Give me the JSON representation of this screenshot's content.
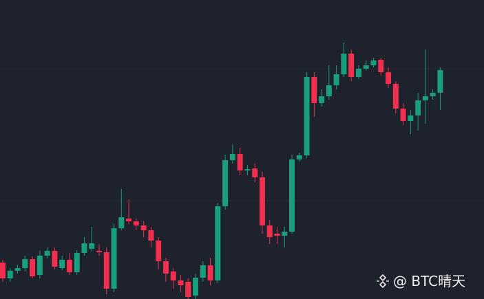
{
  "chart_data": {
    "type": "candlestick",
    "up_color": "#1a9e7d",
    "down_color": "#f0304e",
    "ylim": [
      0,
      435
    ],
    "open": [
      53,
      30,
      41,
      45,
      58,
      35,
      63,
      70,
      45,
      57,
      39,
      67,
      73,
      70,
      68,
      15,
      103,
      117,
      113,
      107,
      100,
      85,
      55,
      40,
      27,
      25,
      5,
      31,
      49,
      27,
      135,
      202,
      211,
      187,
      190,
      177,
      107,
      95,
      92,
      98,
      203,
      209,
      323,
      285,
      295,
      311,
      327,
      357,
      323,
      335,
      340,
      348,
      330,
      313,
      277,
      259,
      267,
      289,
      295,
      300
    ],
    "high": [
      57,
      45,
      50,
      63,
      62,
      70,
      75,
      75,
      63,
      67,
      71,
      90,
      105,
      80,
      75,
      110,
      160,
      145,
      117,
      113,
      105,
      90,
      60,
      45,
      35,
      30,
      37,
      55,
      60,
      140,
      210,
      225,
      220,
      195,
      197,
      185,
      115,
      105,
      105,
      210,
      213,
      330,
      330,
      305,
      340,
      340,
      373,
      363,
      340,
      347,
      351,
      351,
      337,
      317,
      285,
      275,
      300,
      363,
      305,
      337
    ],
    "low": [
      25,
      25,
      37,
      40,
      30,
      30,
      59,
      43,
      42,
      35,
      35,
      63,
      69,
      63,
      7,
      10,
      100,
      109,
      100,
      90,
      75,
      43,
      25,
      15,
      10,
      0,
      0,
      25,
      20,
      23,
      130,
      197,
      180,
      180,
      170,
      95,
      80,
      80,
      75,
      95,
      200,
      205,
      265,
      280,
      290,
      305,
      323,
      317,
      320,
      333,
      337,
      325,
      307,
      270,
      253,
      240,
      245,
      255,
      290,
      275
    ],
    "close": [
      30,
      41,
      45,
      58,
      33,
      63,
      70,
      47,
      57,
      39,
      67,
      81,
      81,
      68,
      15,
      103,
      119,
      113,
      107,
      100,
      85,
      55,
      37,
      27,
      20,
      3,
      31,
      49,
      27,
      135,
      202,
      211,
      187,
      189,
      177,
      107,
      90,
      92,
      98,
      203,
      209,
      323,
      285,
      295,
      311,
      327,
      357,
      323,
      335,
      340,
      347,
      330,
      313,
      277,
      259,
      267,
      289,
      295,
      300,
      333
    ]
  },
  "watermark": "@ BTC晴天"
}
